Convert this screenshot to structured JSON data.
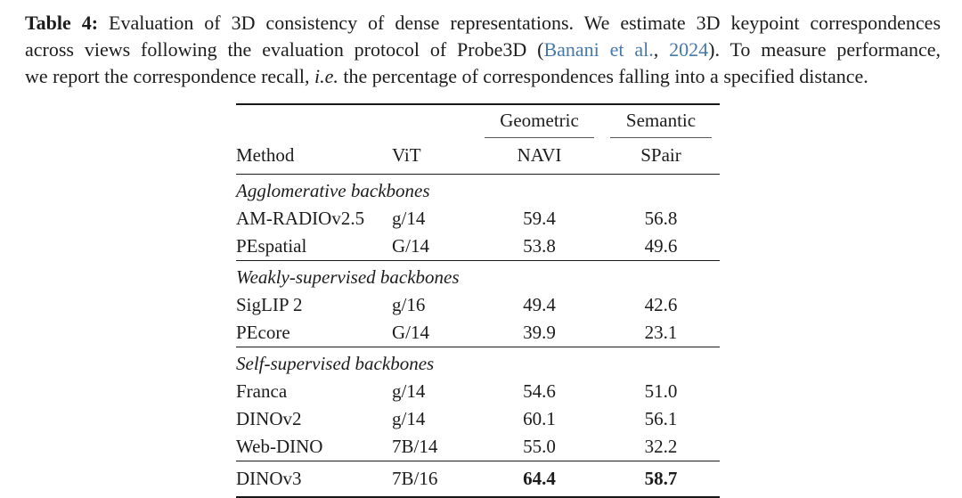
{
  "page": {
    "background_color": "#ffffff",
    "text_color": "#1c1c1c",
    "link_color": "#4678a8"
  },
  "caption": {
    "label": "Table 4:",
    "line1_rest": " Evaluation of 3D consistency of dense representations. We estimate 3D keypoint correspondences",
    "line2_before_cite": "across views following the evaluation protocol of Probe3D (",
    "cite_authors": "Banani et al.",
    "cite_separator": ", ",
    "cite_year": "2024",
    "line2_after_cite": "). To measure performance,",
    "line3_before_ie": "we report the correspondence recall, ",
    "ie_abbrev": "i.e.",
    "line3_after_ie": " the percentage of correspondences falling into a specified distance."
  },
  "table": {
    "group_headers": [
      "Geometric",
      "Semantic"
    ],
    "columns": [
      "Method",
      "ViT",
      "NAVI",
      "SPair"
    ],
    "sections": [
      {
        "label": "Agglomerative backbones",
        "rows": [
          {
            "method": "AM-RADIOv2.5",
            "vit": "g/14",
            "navi": "59.4",
            "spair": "56.8"
          },
          {
            "method": "PEspatial",
            "vit": "G/14",
            "navi": "53.8",
            "spair": "49.6"
          }
        ]
      },
      {
        "label": "Weakly-supervised backbones",
        "rows": [
          {
            "method": "SigLIP 2",
            "vit": "g/16",
            "navi": "49.4",
            "spair": "42.6"
          },
          {
            "method": "PEcore",
            "vit": "G/14",
            "navi": "39.9",
            "spair": "23.1"
          }
        ]
      },
      {
        "label": "Self-supervised backbones",
        "rows": [
          {
            "method": "Franca",
            "vit": "g/14",
            "navi": "54.6",
            "spair": "51.0"
          },
          {
            "method": "DINOv2",
            "vit": "g/14",
            "navi": "60.1",
            "spair": "56.1"
          },
          {
            "method": "Web-DINO",
            "vit": "7B/14",
            "navi": "55.0",
            "spair": "32.2"
          }
        ]
      }
    ],
    "final_row": {
      "method": "DINOv3",
      "vit": "7B/16",
      "navi": "64.4",
      "spair": "58.7"
    }
  }
}
